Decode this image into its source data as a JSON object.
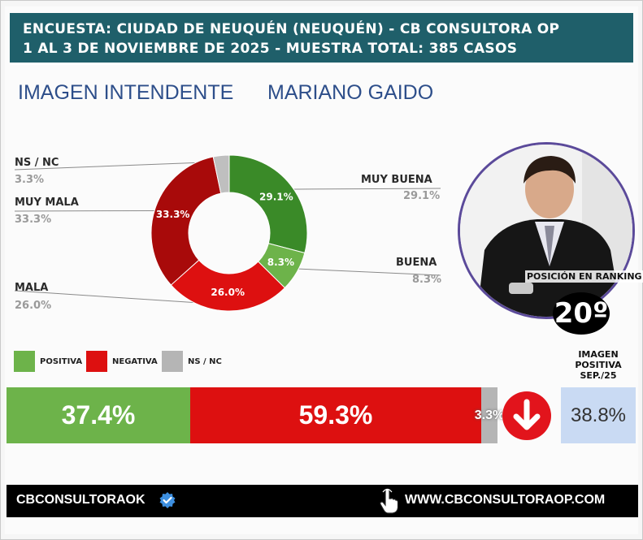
{
  "header": {
    "line1": "ENCUESTA: CIUDAD DE NEUQUÉN (NEUQUÉN) - CB CONSULTORA OP",
    "line2": "1 AL 3 DE NOVIEMBRE DE 2025 - MUESTRA TOTAL: 385 CASOS"
  },
  "subtitle": {
    "left": "IMAGEN INTENDENTE",
    "right": "MARIANO GAIDO"
  },
  "chart_data": [
    {
      "type": "pie",
      "variant": "donut",
      "categories": [
        "MUY BUENA",
        "BUENA",
        "MALA",
        "MUY MALA",
        "NS / NC"
      ],
      "values": [
        29.1,
        8.3,
        26.0,
        33.3,
        3.3
      ],
      "value_labels": [
        "29.1%",
        "8.3%",
        "26.0%",
        "33.3%",
        "3.3%"
      ],
      "colors": [
        "#3a8a28",
        "#6db34a",
        "#dd1010",
        "#a80a0a",
        "#bfbfbf"
      ]
    },
    {
      "type": "bar",
      "orientation": "horizontal",
      "stacked": true,
      "categories": [
        "POSITIVA",
        "NEGATIVA",
        "NS / NC"
      ],
      "values": [
        37.4,
        59.3,
        3.3
      ],
      "value_labels": [
        "37.4%",
        "59.3%",
        "3.3%"
      ],
      "colors": [
        "#6db34a",
        "#dd1010",
        "#b5b5b5"
      ]
    }
  ],
  "ranking": {
    "label": "POSICIÓN EN RANKING",
    "value": "20º"
  },
  "previous": {
    "title": "IMAGEN POSITIVA SEP./25",
    "value": "38.8%",
    "trend_icon": "arrow-down-icon",
    "trend_color": "#e2141c"
  },
  "footer": {
    "handle": "CBCONSULTORAOK",
    "website": "WWW.CBCONSULTORAOP.COM",
    "handle_icon": "verified-badge-icon",
    "website_icon": "pointing-hand-icon"
  }
}
